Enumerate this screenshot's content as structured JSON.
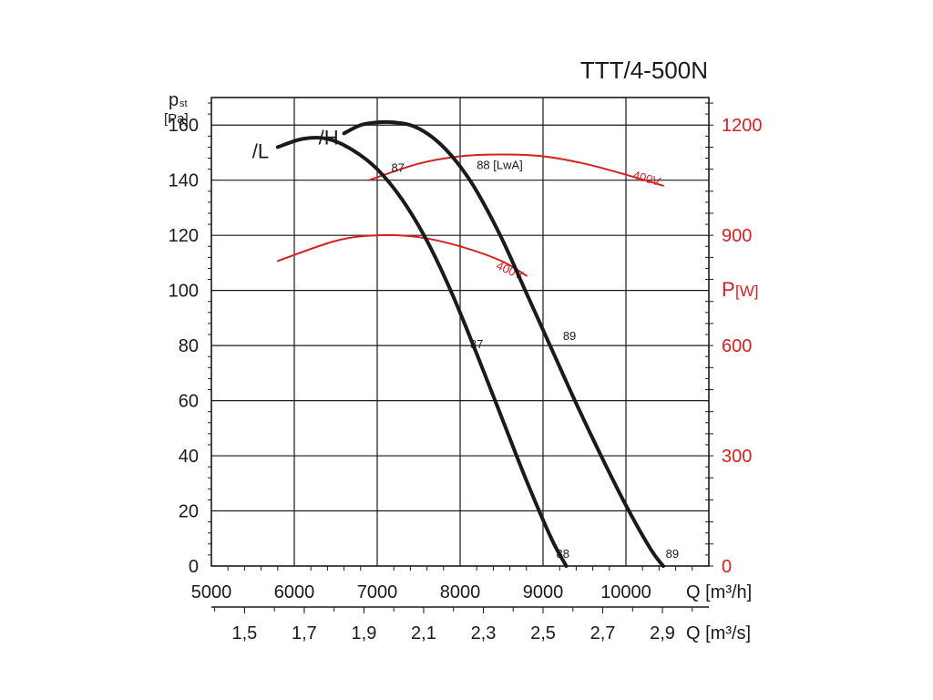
{
  "chart_data": {
    "type": "line",
    "title": "TTT/4-500N",
    "ylabel_main": "p",
    "ylabel_sub": "st",
    "ylabel_unit": "[Pa]",
    "y2label_main": "P",
    "y2label_unit": "[W]",
    "xlabel_top": "Q [m³/h]",
    "xlabel_bottom": "Q [m³/s]",
    "xlim": [
      5000,
      11000
    ],
    "ylim": [
      0,
      170
    ],
    "y2lim": [
      0,
      1275
    ],
    "x_ticks": [
      5000,
      6000,
      7000,
      8000,
      9000,
      10000
    ],
    "x_tick_labels": [
      "5000",
      "6000",
      "7000",
      "8000",
      "9000",
      "10000"
    ],
    "x2_ticks": [
      1.5,
      1.7,
      1.9,
      2.1,
      2.3,
      2.5,
      2.7,
      2.9
    ],
    "x2_tick_labels": [
      "1,5",
      "1,7",
      "1,9",
      "2,1",
      "2,3",
      "2,5",
      "2,7",
      "2,9"
    ],
    "y_ticks": [
      0,
      20,
      40,
      60,
      80,
      100,
      120,
      140,
      160
    ],
    "y_tick_labels": [
      "0",
      "20",
      "40",
      "60",
      "80",
      "100",
      "120",
      "140",
      "160"
    ],
    "y2_ticks": [
      0,
      300,
      600,
      900,
      1200
    ],
    "y2_tick_labels": [
      "0",
      "300",
      "600",
      "900",
      "1200"
    ],
    "grid": true,
    "pressure_series": [
      {
        "name": "/L",
        "x": [
          5800,
          6100,
          6400,
          6700,
          7000,
          7300,
          7600,
          7900,
          8200,
          8500,
          8800,
          9100,
          9280
        ],
        "y": [
          152,
          155,
          155,
          151,
          144,
          133,
          118,
          99,
          77,
          54,
          31,
          10,
          0
        ]
      },
      {
        "name": "/H",
        "x": [
          6600,
          6800,
          7000,
          7200,
          7400,
          7600,
          7800,
          8000,
          8200,
          8500,
          8800,
          9100,
          9400,
          9700,
          10000,
          10300,
          10450
        ],
        "y": [
          157,
          160,
          161,
          161,
          160,
          157,
          152,
          145,
          136,
          119,
          99,
          79,
          59,
          40,
          22,
          6,
          0
        ]
      }
    ],
    "power_series": [
      {
        "name": "400V",
        "x": [
          5800,
          6500,
          7000,
          7500,
          8000,
          8500,
          8800
        ],
        "y": [
          830,
          885,
          900,
          895,
          870,
          830,
          790
        ]
      },
      {
        "name": "400V",
        "x": [
          6900,
          7500,
          8000,
          8500,
          9000,
          9500,
          10000,
          10450
        ],
        "y": [
          1050,
          1095,
          1115,
          1120,
          1115,
          1095,
          1065,
          1035
        ]
      }
    ],
    "annotations": [
      {
        "text": "87",
        "x": 7170,
        "y": 143
      },
      {
        "text": "88 [LwA]",
        "x": 8200,
        "y": 144
      },
      {
        "text": "87",
        "x": 8120,
        "y": 79
      },
      {
        "text": "89",
        "x": 9240,
        "y": 82
      },
      {
        "text": "88",
        "x": 9160,
        "y": 3
      },
      {
        "text": "89",
        "x": 10480,
        "y": 3
      }
    ]
  }
}
